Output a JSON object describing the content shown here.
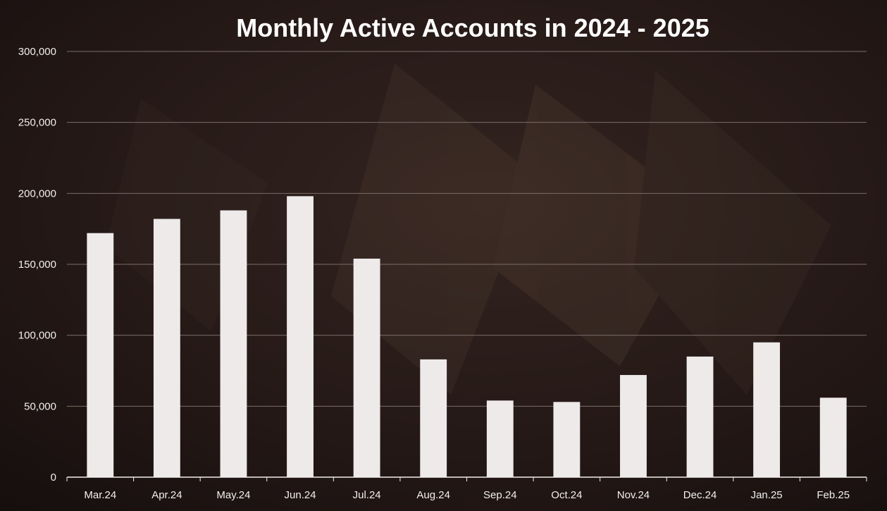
{
  "colors": {
    "background": "#1d1413",
    "bar": "#eeeaea",
    "grid": "#7a6c69",
    "axis": "#f2efee",
    "text": "#ffffff"
  },
  "chart_data": {
    "type": "bar",
    "title": "Monthly Active Accounts in 2024 - 2025",
    "xlabel": "",
    "ylabel": "",
    "ylim": [
      0,
      300000
    ],
    "yticks": [
      0,
      50000,
      100000,
      150000,
      200000,
      250000,
      300000
    ],
    "ytick_labels": [
      "0",
      "50,000",
      "100,000",
      "150,000",
      "200,000",
      "250,000",
      "300,000"
    ],
    "grid": true,
    "legend": "none",
    "categories": [
      "Mar.24",
      "Apr.24",
      "May.24",
      "Jun.24",
      "Jul.24",
      "Aug.24",
      "Sep.24",
      "Oct.24",
      "Nov.24",
      "Dec.24",
      "Jan.25",
      "Feb.25"
    ],
    "values": [
      172000,
      182000,
      188000,
      198000,
      154000,
      83000,
      54000,
      53000,
      72000,
      85000,
      95000,
      56000
    ]
  }
}
